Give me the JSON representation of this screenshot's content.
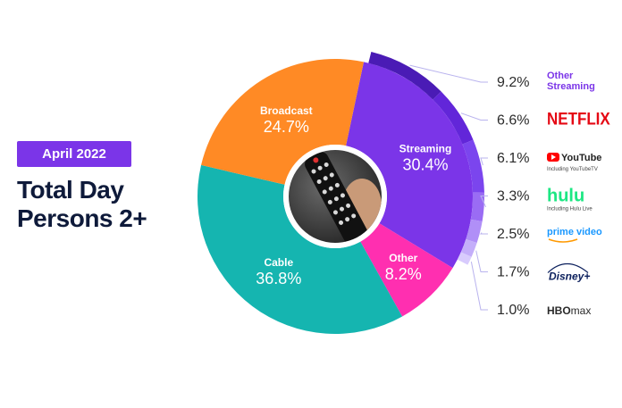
{
  "badge": "April 2022",
  "title_line1": "Total Day",
  "title_line2": "Persons 2+",
  "colors": {
    "streaming": "#7b35e8",
    "other": "#ff2fb0",
    "cable": "#15b5b0",
    "broadcast": "#ff8a25",
    "sub_ring": [
      "#4a1bb5",
      "#6226d9",
      "#7b45ee",
      "#9a6cf4",
      "#b08ff7",
      "#c4aefa",
      "#d8cbfd"
    ]
  },
  "chart_data": {
    "type": "pie",
    "slices": [
      {
        "name": "Streaming",
        "value": 30.4,
        "label": "30.4%"
      },
      {
        "name": "Other",
        "value": 8.2,
        "label": "8.2%"
      },
      {
        "name": "Cable",
        "value": 36.8,
        "label": "36.8%"
      },
      {
        "name": "Broadcast",
        "value": 24.7,
        "label": "24.7%"
      }
    ],
    "streaming_breakdown": [
      {
        "name": "Other Streaming",
        "value": 9.2,
        "label": "9.2%",
        "logo_text": "Other Streaming",
        "logo_lines": [
          "Other",
          "Streaming"
        ],
        "logo_color": "#7b35e8"
      },
      {
        "name": "Netflix",
        "value": 6.6,
        "label": "6.6%",
        "logo_text": "NETFLIX",
        "logo_color": "#e50914"
      },
      {
        "name": "YouTube",
        "value": 6.1,
        "label": "6.1%",
        "logo_text": "YouTube",
        "logo_sub": "Including YouTubeTV",
        "logo_color": "#ff0000"
      },
      {
        "name": "Hulu",
        "value": 3.3,
        "label": "3.3%",
        "logo_text": "hulu",
        "logo_sub": "Including Hulu Live",
        "logo_color": "#1ce783"
      },
      {
        "name": "Prime Video",
        "value": 2.5,
        "label": "2.5%",
        "logo_text": "prime video",
        "logo_color": "#1a98ff"
      },
      {
        "name": "Disney+",
        "value": 1.7,
        "label": "1.7%",
        "logo_text": "Disney+",
        "logo_color": "#0b1f5c"
      },
      {
        "name": "HBO Max",
        "value": 1.0,
        "label": "1.0%",
        "logo_text": "HBOMAX",
        "logo_lines": [
          "HBO",
          "max"
        ],
        "logo_color": "#2a2a2a"
      }
    ]
  }
}
